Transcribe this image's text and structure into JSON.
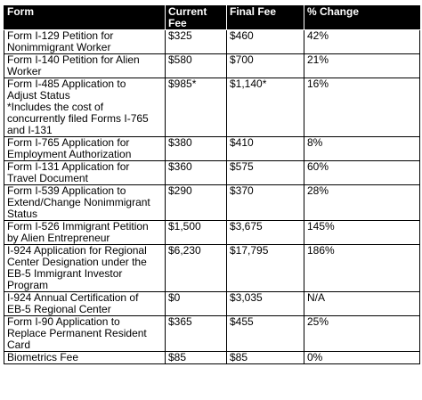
{
  "table": {
    "headers": [
      "Form",
      "Current\nFee",
      "Final Fee",
      "% Change"
    ],
    "rows": [
      [
        "Form I-129 Petition for\nNonimmigrant Worker",
        "$325",
        "$460",
        "42%"
      ],
      [
        "Form I-140 Petition for Alien\nWorker",
        "$580",
        "$700",
        "21%"
      ],
      [
        "Form I-485 Application to\nAdjust Status\n*Includes the cost of\nconcurrently filed Forms I-765\nand I-131",
        "$985*",
        "$1,140*",
        "16%"
      ],
      [
        "Form I-765 Application for\nEmployment Authorization",
        "$380",
        "$410",
        "8%"
      ],
      [
        "Form I-131 Application for\nTravel Document",
        "$360",
        "$575",
        "60%"
      ],
      [
        "Form I-539 Application to\nExtend/Change Nonimmigrant\nStatus",
        "$290",
        "$370",
        "28%"
      ],
      [
        "Form I-526 Immigrant Petition\nby Alien Entrepreneur",
        "$1,500",
        "$3,675",
        "145%"
      ],
      [
        "I-924 Application for Regional\nCenter Designation under the\nEB-5 Immigrant Investor\nProgram",
        "$6,230",
        "$17,795",
        "186%"
      ],
      [
        "I-924 Annual Certification of\nEB-5 Regional Center",
        "$0",
        "$3,035",
        "N/A"
      ],
      [
        "Form I-90 Application to\nReplace Permanent Resident\nCard",
        "$365",
        "$455",
        "25%"
      ],
      [
        "Biometrics Fee",
        "$85",
        "$85",
        "0%"
      ]
    ]
  }
}
